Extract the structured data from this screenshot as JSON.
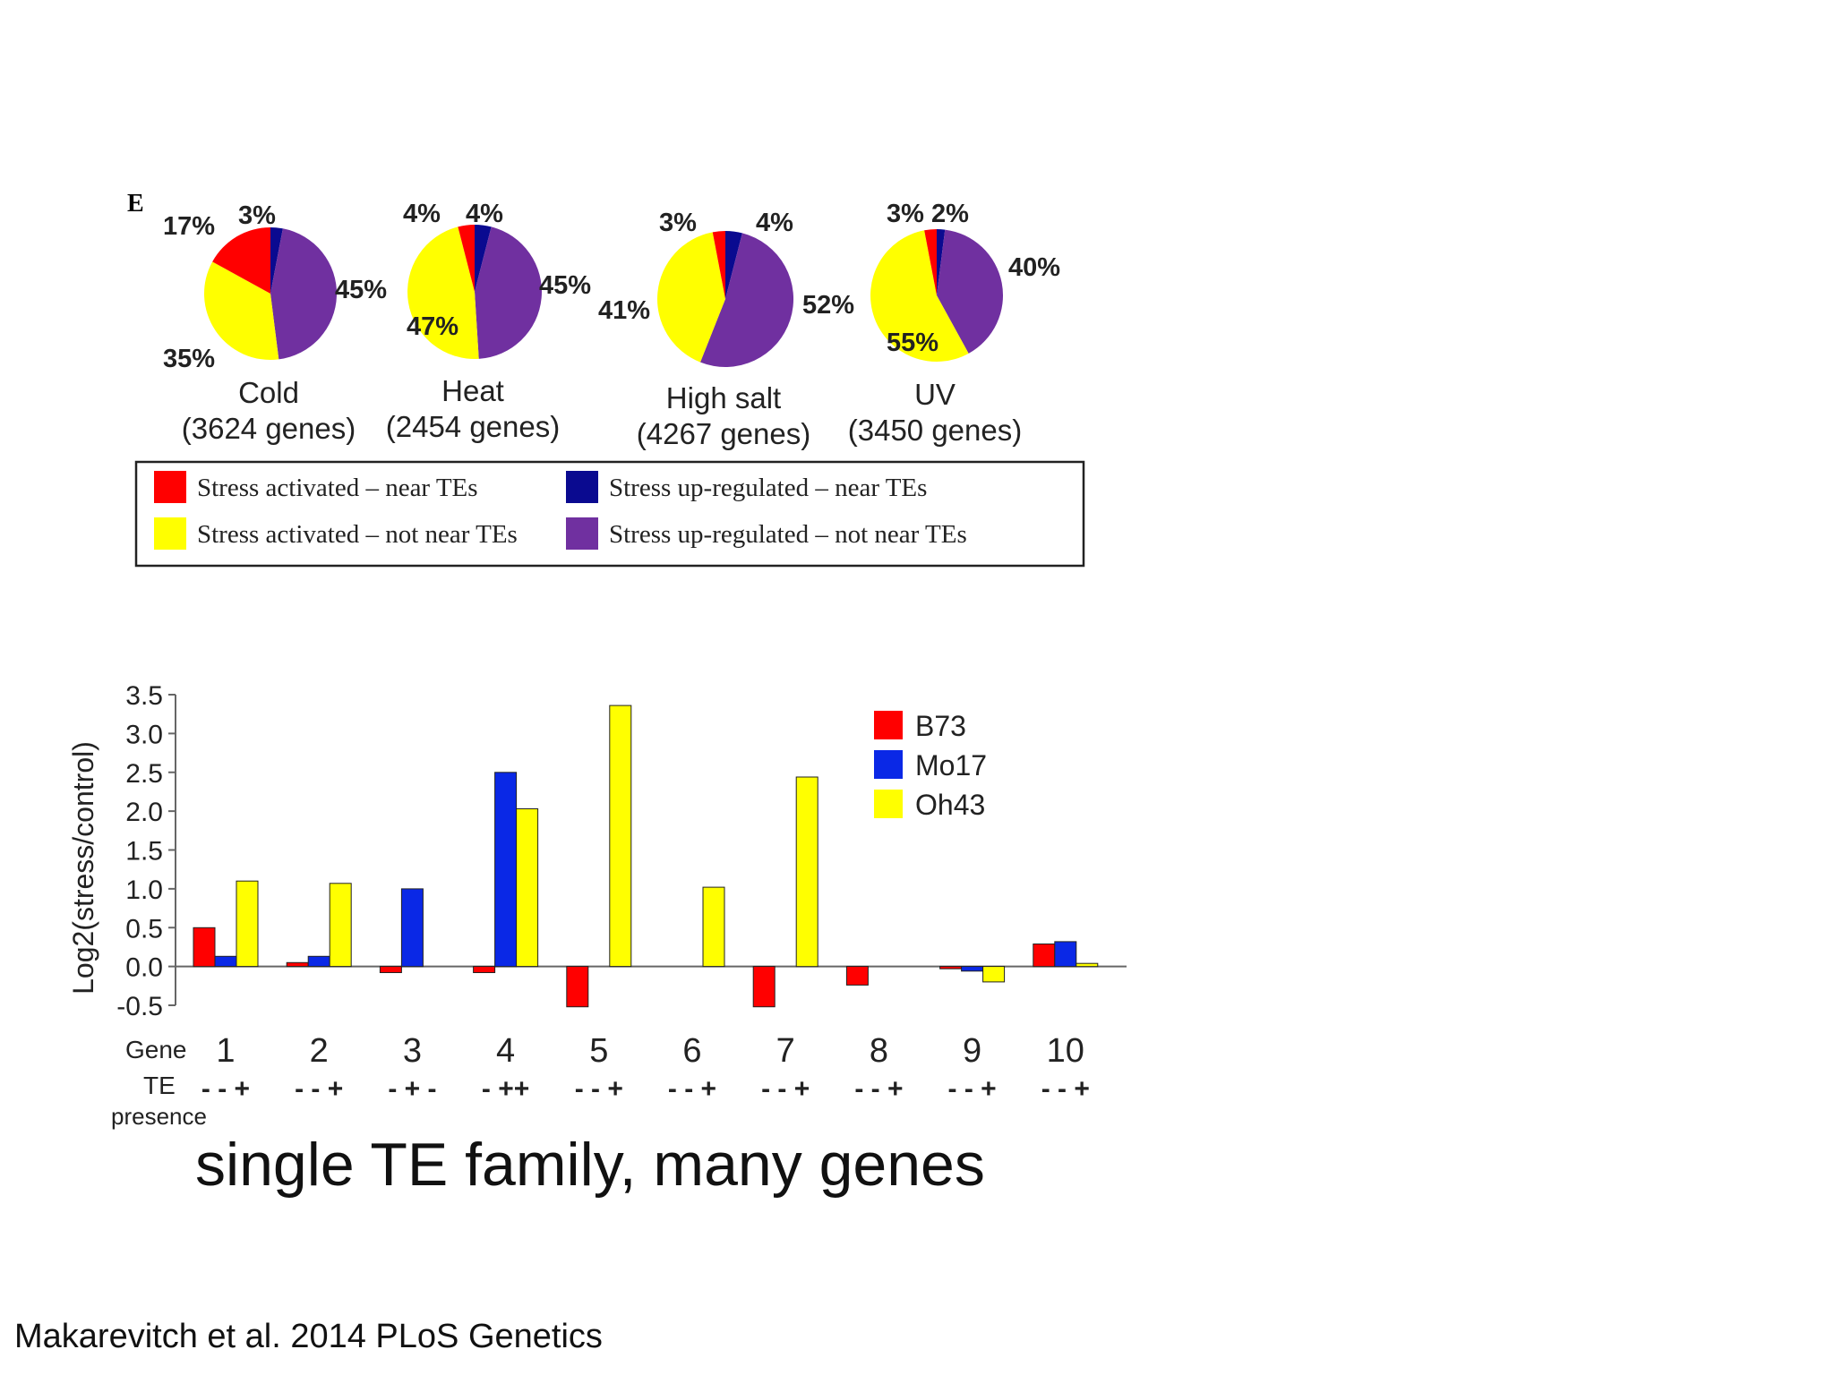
{
  "chart_data": [
    {
      "type": "pie",
      "panel_label": "E",
      "series_names": [
        "Stress activated – near TEs",
        "Stress activated – not near TEs",
        "Stress up-regulated – near TEs",
        "Stress up-regulated – not near TEs"
      ],
      "colors": [
        "#ff0000",
        "#ffff00",
        "#0a0a90",
        "#7030a0"
      ],
      "pies": [
        {
          "name": "Cold",
          "subtitle": "(3624 genes)",
          "values": [
            17,
            35,
            3,
            45
          ],
          "labels": [
            "17%",
            "35%",
            "3%",
            "45%"
          ]
        },
        {
          "name": "Heat",
          "subtitle": "(2454 genes)",
          "values": [
            4,
            47,
            4,
            45
          ],
          "labels": [
            "4%",
            "47%",
            "4%",
            "45%"
          ]
        },
        {
          "name": "High salt",
          "subtitle": "(4267 genes)",
          "values": [
            3,
            41,
            4,
            52
          ],
          "labels": [
            "3%",
            "41%",
            "4%",
            "52%"
          ]
        },
        {
          "name": "UV",
          "subtitle": "(3450 genes)",
          "values": [
            3,
            55,
            2,
            40
          ],
          "labels": [
            "3%",
            "55%",
            "2%",
            "40%"
          ]
        }
      ],
      "legend": [
        {
          "label": "Stress activated – near TEs",
          "color": "#ff0000"
        },
        {
          "label": "Stress up-regulated – near TEs",
          "color": "#0a0a90"
        },
        {
          "label": "Stress activated – not near TEs",
          "color": "#ffff00"
        },
        {
          "label": "Stress up-regulated – not near TEs",
          "color": "#7030a0"
        }
      ]
    },
    {
      "type": "bar",
      "ylabel": "Log2(stress/control)",
      "ylim": [
        -0.5,
        3.5
      ],
      "yticks": [
        "3.5",
        "3.0",
        "2.5",
        "2.0",
        "1.5",
        "1.0",
        "0.5",
        "0.0",
        "-0.5"
      ],
      "xlabel_row1": "Gene",
      "xlabel_row2": "TE",
      "xlabel_row3": "presence",
      "categories": [
        "1",
        "2",
        "3",
        "4",
        "5",
        "6",
        "7",
        "8",
        "9",
        "10"
      ],
      "te_presence": [
        "- - +",
        "- - +",
        "- + -",
        "- ++",
        "- - +",
        "- - +",
        "- - +",
        "- - +",
        "- - +",
        "- - +"
      ],
      "series": [
        {
          "name": "B73",
          "color": "#ff0000",
          "values": [
            0.5,
            0.05,
            -0.08,
            -0.08,
            -0.52,
            0.0,
            -0.52,
            -0.24,
            -0.03,
            0.29
          ]
        },
        {
          "name": "Mo17",
          "color": "#0a28e6",
          "values": [
            0.13,
            0.13,
            1.0,
            2.5,
            0.0,
            0.0,
            0.0,
            0.0,
            -0.06,
            0.32
          ]
        },
        {
          "name": "Oh43",
          "color": "#ffff00",
          "values": [
            1.1,
            1.07,
            0.0,
            2.03,
            3.36,
            1.02,
            2.44,
            0.0,
            -0.2,
            0.04
          ]
        }
      ]
    }
  ],
  "caption": "single TE family, many genes",
  "citation": "Makarevitch et al. 2014 PLoS Genetics"
}
